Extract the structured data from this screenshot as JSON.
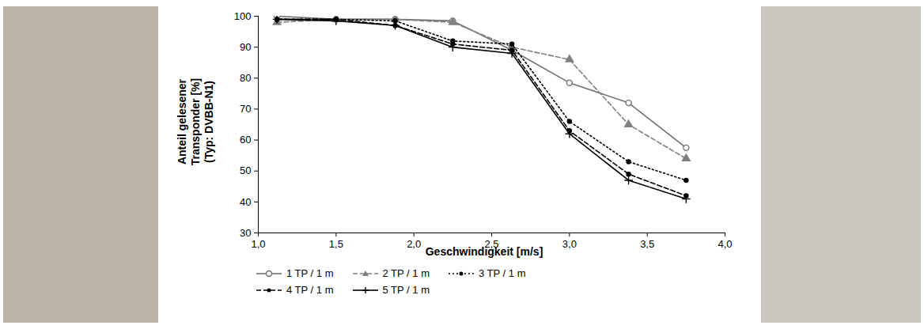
{
  "chart_data": {
    "type": "line",
    "x_label": "Geschwindigkeit [m/s]",
    "y_label": "Anteil gelesener Transponder [%] (Typ: DVBB-N1)",
    "x": [
      1.12,
      1.5,
      1.88,
      2.25,
      2.63,
      3.0,
      3.38,
      3.75
    ],
    "series": [
      {
        "name": "1 TP / 1 m",
        "color": "#707070",
        "marker": "circle-open",
        "line_style": "solid",
        "values": [
          100,
          99,
          99,
          98.5,
          89,
          78.5,
          72,
          57.5
        ]
      },
      {
        "name": "2 TP / 1 m",
        "color": "#808080",
        "marker": "triangle",
        "line_style": "dashed",
        "values": [
          98,
          99,
          99,
          98,
          90,
          86,
          65,
          54
        ]
      },
      {
        "name": "3 TP / 1 m",
        "color": "#000000",
        "marker": "circle",
        "line_style": "dotted",
        "values": [
          99,
          99,
          98.5,
          92,
          91,
          66,
          53,
          47
        ]
      },
      {
        "name": "4 TP / 1 m",
        "color": "#000000",
        "marker": "circle",
        "line_style": "dashed",
        "values": [
          99,
          99,
          97,
          91,
          89,
          63,
          49,
          42
        ]
      },
      {
        "name": "5 TP / 1 m",
        "color": "#000000",
        "marker": "plus",
        "line_style": "solid",
        "values": [
          99,
          98.5,
          97,
          90,
          88,
          62,
          47,
          41
        ]
      }
    ],
    "xlim": [
      1,
      4
    ],
    "xticks": [
      {
        "value": 1,
        "label": "1,0"
      },
      {
        "value": 1.5,
        "label": "1,5"
      },
      {
        "value": 2,
        "label": "2,0"
      },
      {
        "value": 2.5,
        "label": "2,5"
      },
      {
        "value": 3,
        "label": "3,0"
      },
      {
        "value": 3.5,
        "label": "3,5"
      },
      {
        "value": 4,
        "label": "4,0"
      }
    ],
    "ylim": [
      30,
      100
    ],
    "yticks": [
      30,
      40,
      50,
      60,
      70,
      80,
      90,
      100
    ],
    "grid": false,
    "legend": "bottom"
  }
}
